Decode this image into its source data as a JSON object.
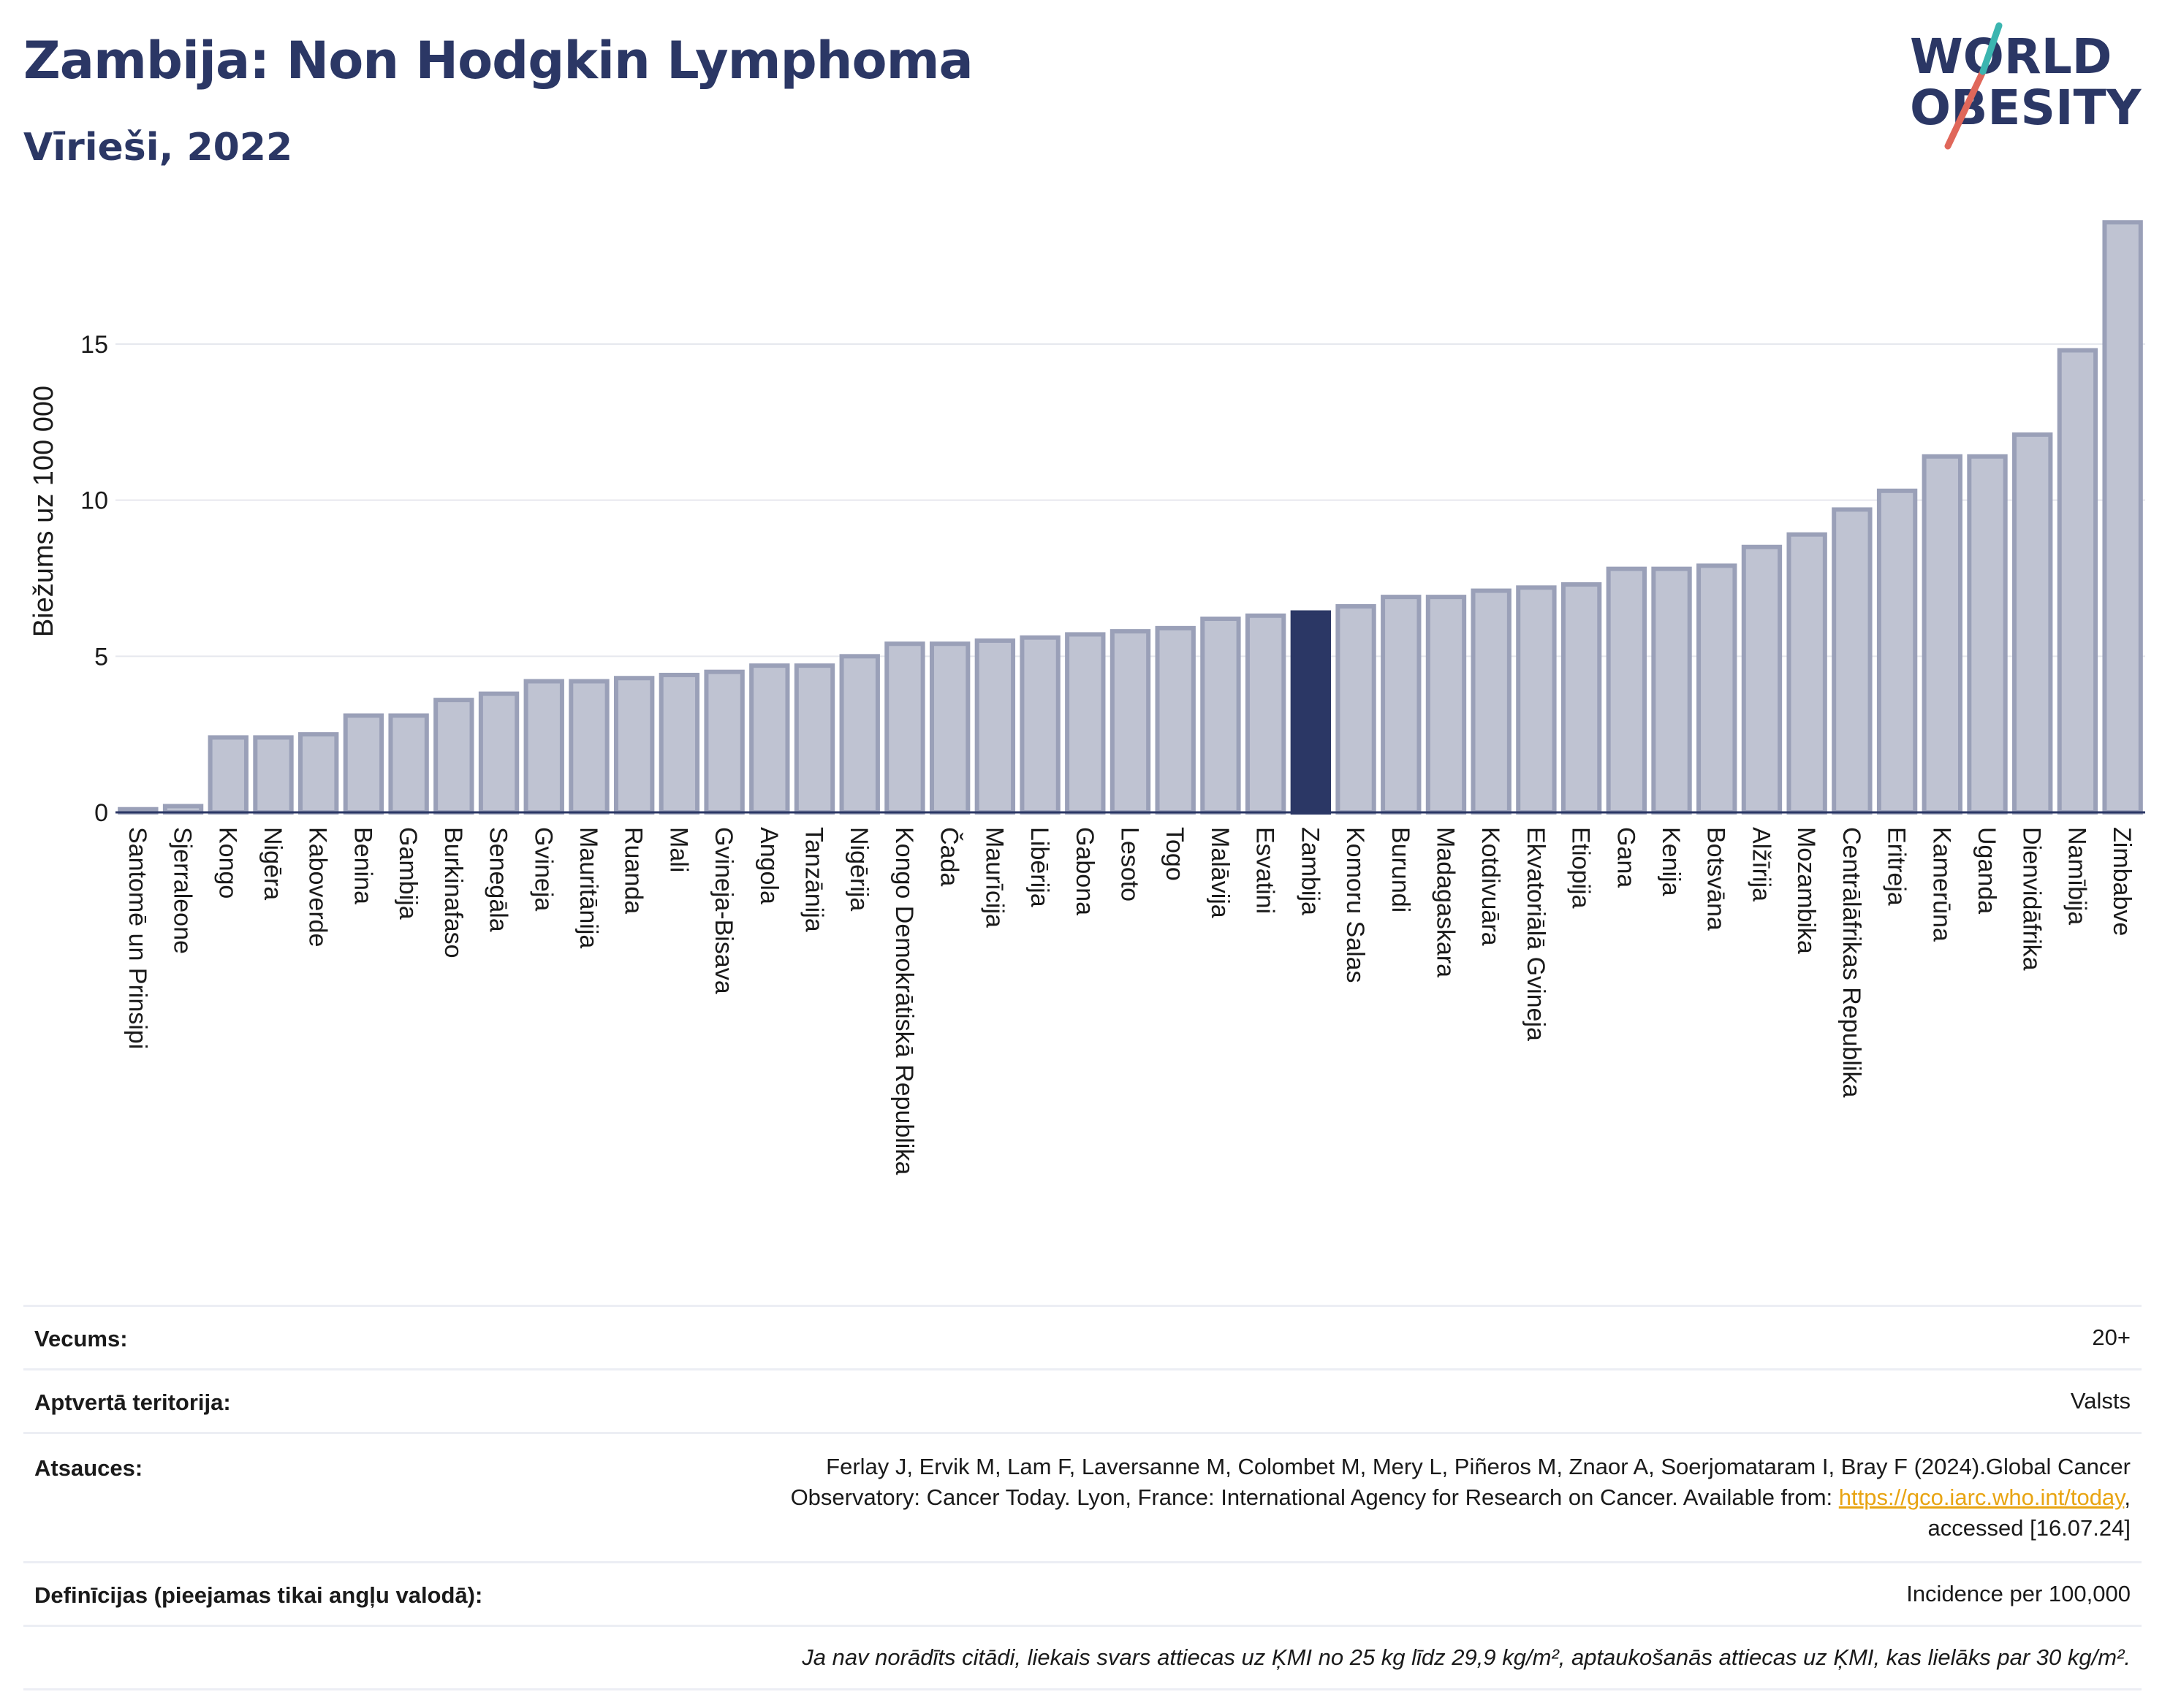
{
  "header": {
    "title": "Zambija: Non Hodgkin Lymphoma",
    "subtitle": "Vīrieši, 2022"
  },
  "logo": {
    "line1": "WORLD",
    "line2": "OBESITY"
  },
  "colors": {
    "bar": "#bfc3d2",
    "bar_stroke": "#9aa0b8",
    "highlight": "#2b3765",
    "text": "#2b3765"
  },
  "chart_data": {
    "type": "bar",
    "ylabel": "Biežums uz 100 000",
    "xlabel": "",
    "ylim": [
      0,
      19
    ],
    "yticks": [
      0,
      5,
      10,
      15
    ],
    "grid": true,
    "highlight": "Zambija",
    "categories": [
      "Santomē un Prinsipi",
      "Sjerraleone",
      "Kongo",
      "Nigēra",
      "Kaboverde",
      "Benina",
      "Gambija",
      "Burkinafaso",
      "Senegāla",
      "Gvineja",
      "Mauritānija",
      "Ruanda",
      "Mali",
      "Gvineja-Bisava",
      "Angola",
      "Tanzānija",
      "Nigērija",
      "Kongo Demokrātiskā Republika",
      "Čada",
      "Maurīcija",
      "Libērija",
      "Gabona",
      "Lesoto",
      "Togo",
      "Malāvija",
      "Esvatini",
      "Zambija",
      "Komoru Salas",
      "Burundi",
      "Madagaskara",
      "Kotdivuāra",
      "Ekvatoriālā Gvineja",
      "Etiopija",
      "Gana",
      "Kenija",
      "Botsvāna",
      "Alžīrija",
      "Mozambika",
      "Centrālāfrikas Republika",
      "Eritreja",
      "Kamerūna",
      "Uganda",
      "Dienvidāfrika",
      "Namībija",
      "Zimbabve"
    ],
    "values": [
      0.1,
      0.2,
      2.4,
      2.4,
      2.5,
      3.1,
      3.1,
      3.6,
      3.8,
      4.2,
      4.2,
      4.3,
      4.4,
      4.5,
      4.7,
      4.7,
      5.0,
      5.4,
      5.4,
      5.5,
      5.6,
      5.7,
      5.8,
      5.9,
      6.2,
      6.3,
      6.4,
      6.6,
      6.9,
      6.9,
      7.1,
      7.2,
      7.3,
      7.8,
      7.8,
      7.9,
      8.5,
      8.9,
      9.7,
      10.3,
      11.4,
      11.4,
      12.1,
      14.8,
      18.9
    ]
  },
  "info": {
    "age_label": "Vecums:",
    "age_value": "20+",
    "territory_label": "Aptvertā teritorija:",
    "territory_value": "Valsts",
    "refs_label": "Atsauces:",
    "refs_text_1": "Ferlay J, Ervik M, Lam F, Laversanne M, Colombet M, Mery L, Piñeros M, Znaor A, Soerjomataram I, Bray F (2024).Global Cancer",
    "refs_text_2": "Observatory: Cancer Today. Lyon, France: International Agency for Research on Cancer. Available from: ",
    "refs_link": "https://gco.iarc.who.int/today",
    "refs_text_3": ",",
    "refs_text_4": "accessed [16.07.24]",
    "defs_label": "Definīcijas (pieejamas tikai angļu valodā):",
    "defs_value": "Incidence per 100,000",
    "note": "Ja nav norādīts citādi, liekais svars attiecas uz ĶMI no 25 kg līdz 29,9 kg/m², aptaukošanās attiecas uz ĶMI, kas lielāks par 30 kg/m²."
  }
}
